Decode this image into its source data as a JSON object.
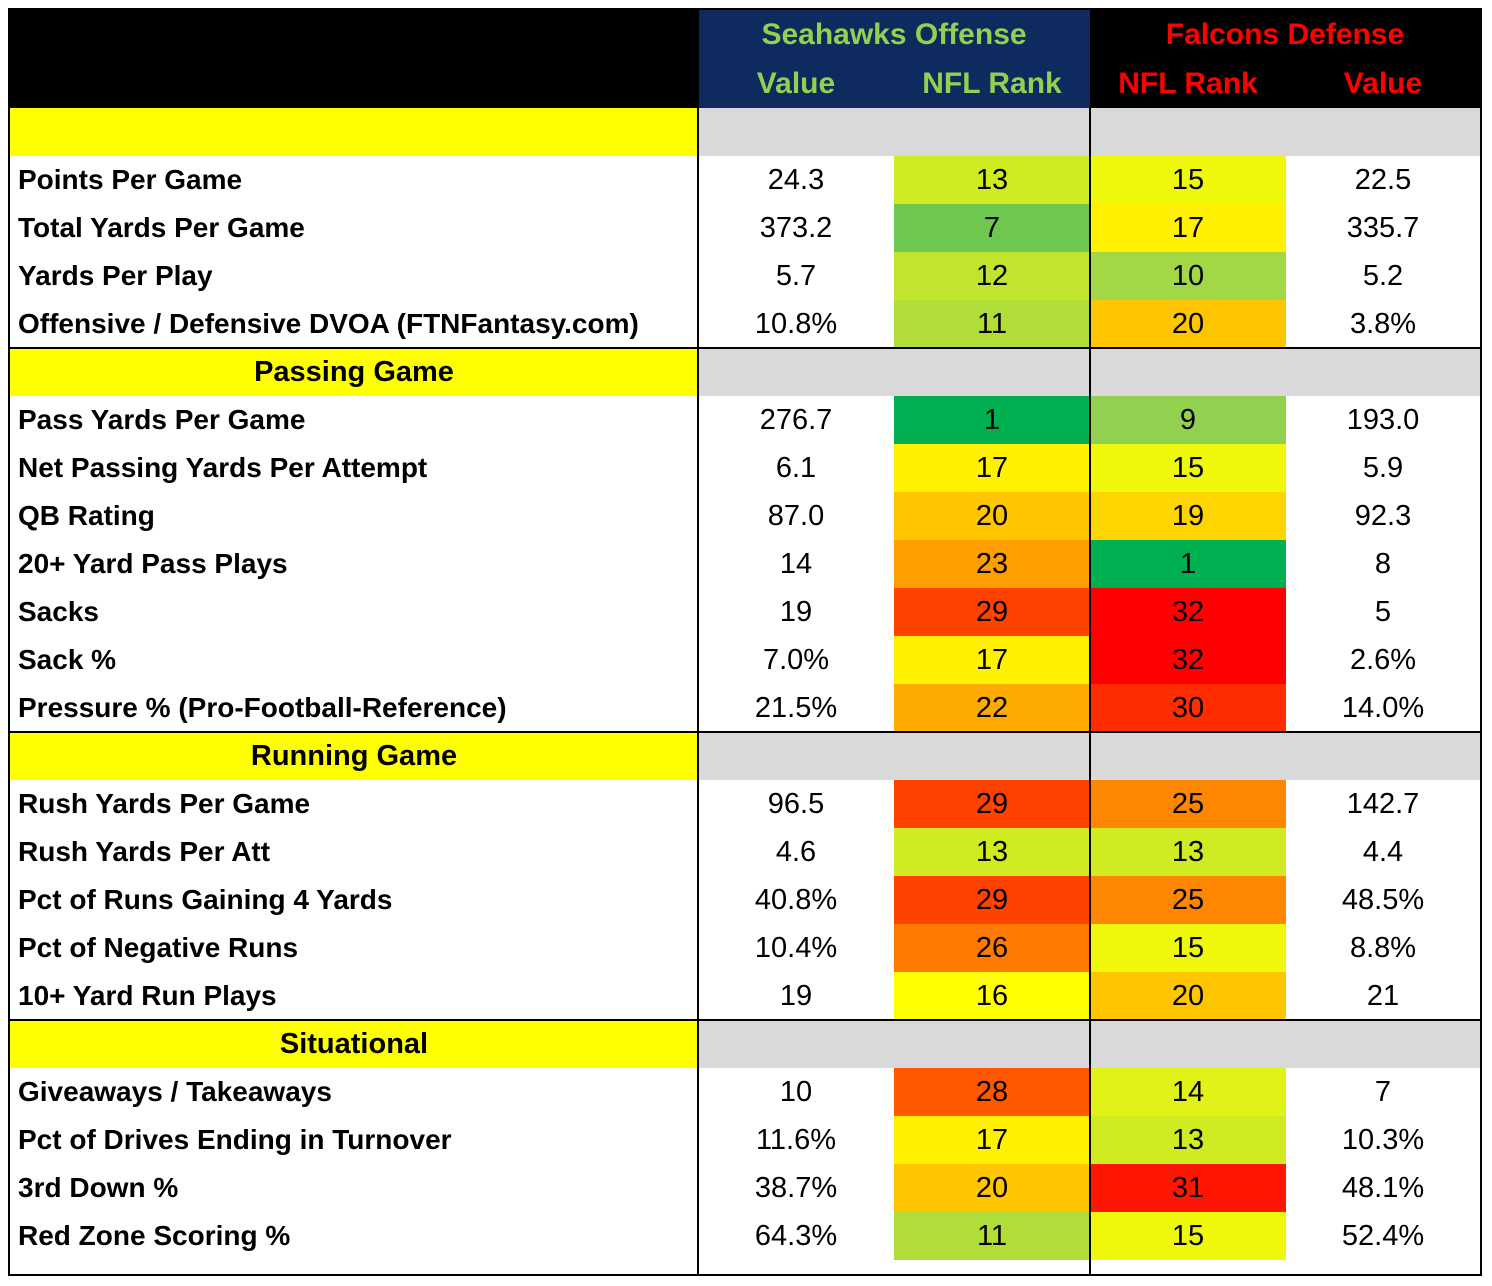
{
  "header": {
    "offense_team": "Seahawks Offense",
    "defense_team": "Falcons Defense",
    "col_value": "Value",
    "col_rank": "NFL Rank"
  },
  "colors": {
    "offense_header_bg": "#0f2a5f",
    "offense_header_text": "#92d050",
    "defense_header_bg": "#000000",
    "defense_header_text": "#ff0000",
    "section_bg": "#ffff00",
    "section_fill": "#d9d9d9"
  },
  "sections": [
    {
      "title": "",
      "rows": [
        {
          "label": "Points Per Game",
          "off_value": "24.3",
          "off_rank": 13,
          "def_rank": 15,
          "def_value": "22.5"
        },
        {
          "label": "Total Yards Per Game",
          "off_value": "373.2",
          "off_rank": 7,
          "def_rank": 17,
          "def_value": "335.7"
        },
        {
          "label": "Yards Per Play",
          "off_value": "5.7",
          "off_rank": 12,
          "def_rank": 10,
          "def_value": "5.2"
        },
        {
          "label": "Offensive / Defensive DVOA (FTNFantasy.com)",
          "off_value": "10.8%",
          "off_rank": 11,
          "def_rank": 20,
          "def_value": "3.8%"
        }
      ]
    },
    {
      "title": "Passing Game",
      "rows": [
        {
          "label": "Pass Yards Per Game",
          "off_value": "276.7",
          "off_rank": 1,
          "def_rank": 9,
          "def_value": "193.0"
        },
        {
          "label": "Net Passing Yards Per Attempt",
          "off_value": "6.1",
          "off_rank": 17,
          "def_rank": 15,
          "def_value": "5.9"
        },
        {
          "label": "QB Rating",
          "off_value": "87.0",
          "off_rank": 20,
          "def_rank": 19,
          "def_value": "92.3"
        },
        {
          "label": "20+ Yard Pass Plays",
          "off_value": "14",
          "off_rank": 23,
          "def_rank": 1,
          "def_value": "8"
        },
        {
          "label": "Sacks",
          "off_value": "19",
          "off_rank": 29,
          "def_rank": 32,
          "def_value": "5"
        },
        {
          "label": "Sack %",
          "off_value": "7.0%",
          "off_rank": 17,
          "def_rank": 32,
          "def_value": "2.6%"
        },
        {
          "label": "Pressure % (Pro-Football-Reference)",
          "off_value": "21.5%",
          "off_rank": 22,
          "def_rank": 30,
          "def_value": "14.0%"
        }
      ]
    },
    {
      "title": "Running Game",
      "rows": [
        {
          "label": "Rush Yards Per Game",
          "off_value": "96.5",
          "off_rank": 29,
          "def_rank": 25,
          "def_value": "142.7"
        },
        {
          "label": "Rush Yards Per Att",
          "off_value": "4.6",
          "off_rank": 13,
          "def_rank": 13,
          "def_value": "4.4"
        },
        {
          "label": "Pct of Runs Gaining 4 Yards",
          "off_value": "40.8%",
          "off_rank": 29,
          "def_rank": 25,
          "def_value": "48.5%"
        },
        {
          "label": "Pct of Negative Runs",
          "off_value": "10.4%",
          "off_rank": 26,
          "def_rank": 15,
          "def_value": "8.8%"
        },
        {
          "label": "10+ Yard Run Plays",
          "off_value": "19",
          "off_rank": 16,
          "def_rank": 20,
          "def_value": "21"
        }
      ]
    },
    {
      "title": "Situational",
      "rows": [
        {
          "label": "Giveaways / Takeaways",
          "off_value": "10",
          "off_rank": 28,
          "def_rank": 14,
          "def_value": "7"
        },
        {
          "label": "Pct of Drives Ending in Turnover",
          "off_value": "11.6%",
          "off_rank": 17,
          "def_rank": 13,
          "def_value": "10.3%"
        },
        {
          "label": "3rd Down %",
          "off_value": "38.7%",
          "off_rank": 20,
          "def_rank": 31,
          "def_value": "48.1%"
        },
        {
          "label": "Red Zone Scoring %",
          "off_value": "64.3%",
          "off_rank": 11,
          "def_rank": 15,
          "def_value": "52.4%"
        }
      ]
    }
  ]
}
